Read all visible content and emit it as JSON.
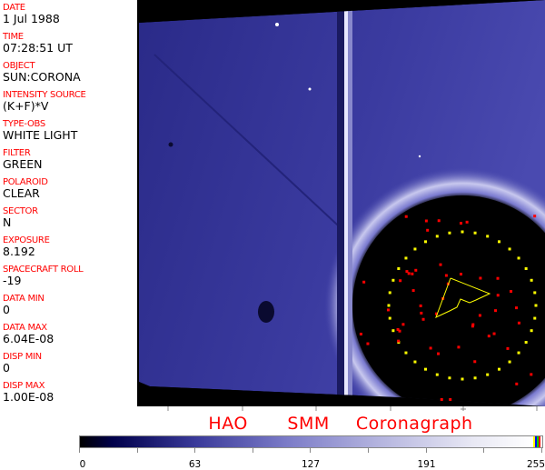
{
  "info_panel": [
    {
      "label": "DATE",
      "value": "1 Jul 1988"
    },
    {
      "label": "TIME",
      "value": "07:28:51 UT"
    },
    {
      "label": "OBJECT",
      "value": "SUN:CORONA"
    },
    {
      "label": "INTENSITY SOURCE",
      "value": "(K+F)*V"
    },
    {
      "label": "TYPE-OBS",
      "value": "WHITE LIGHT"
    },
    {
      "label": "FILTER",
      "value": "GREEN"
    },
    {
      "label": "POLAROID",
      "value": "CLEAR"
    },
    {
      "label": "SECTOR",
      "value": "N"
    },
    {
      "label": "EXPOSURE",
      "value": "8.192"
    },
    {
      "label": "SPACECRAFT ROLL",
      "value": "-19"
    },
    {
      "label": "DATA MIN",
      "value": "0"
    },
    {
      "label": "DATA MAX",
      "value": "6.04E-08"
    },
    {
      "label": "DISP MIN",
      "value": "0"
    },
    {
      "label": "DISP MAX",
      "value": "1.00E-08"
    }
  ],
  "title": "HAO   SMM  Coronagraph",
  "colorbar": {
    "ticks": [
      "0",
      "63",
      "127",
      "191",
      "255"
    ],
    "colormap": "black-blue-white",
    "extra_colors": [
      "#ffff00",
      "#0000ff",
      "#00cc00",
      "#ff0000"
    ]
  },
  "overlay": {
    "ring_color": "#ffff00",
    "marker_color": "#ff0000",
    "polygon_color": "#ffff00"
  },
  "colors": {
    "background": "#000000",
    "image_tint": "#3a3aa0",
    "label": "#ff0000"
  }
}
